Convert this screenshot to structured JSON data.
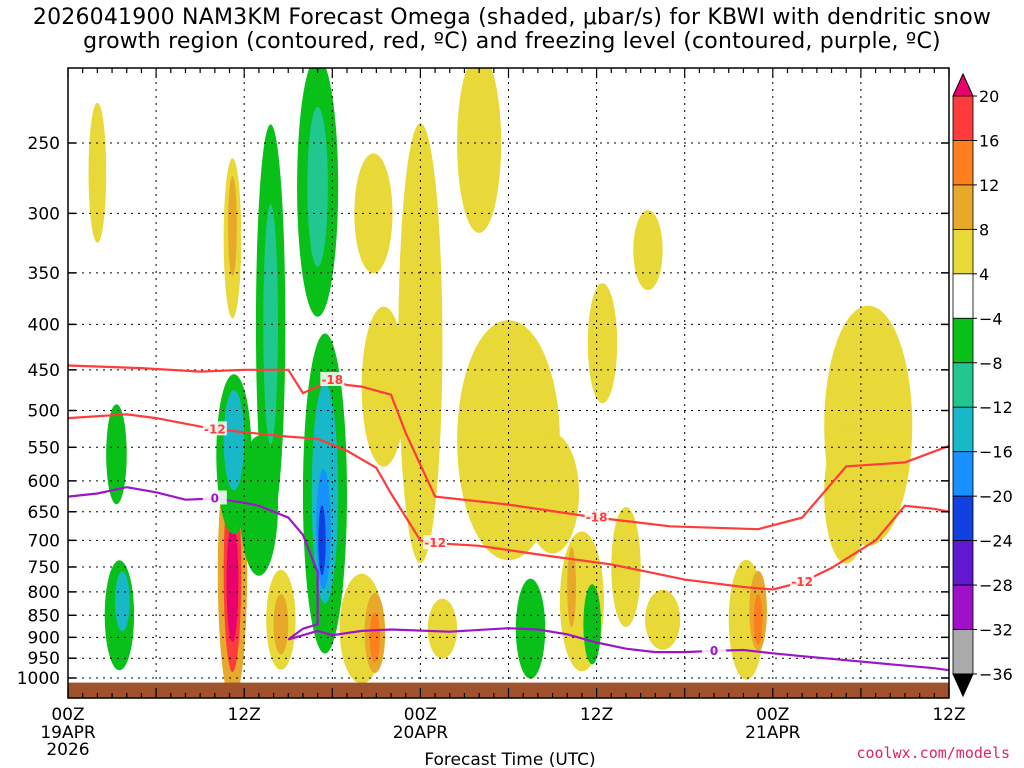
{
  "title_line1": "2026041900 NAM3KM Forecast Omega (shaded, μbar/s) for KBWI with dendritic snow",
  "title_line2": "growth region (contoured, red, ºC) and freezing level (contoured, purple, ºC)",
  "credit": "coolwx.com/models",
  "chart_data": {
    "type": "heatmap",
    "title": "2026041900 NAM3KM Forecast Omega (shaded, μbar/s) for KBWI with dendritic snow growth region (contoured, red, ºC) and freezing level (contoured, purple, ºC)",
    "xlabel": "Forecast Time (UTC)",
    "ylabel": "",
    "x_range_hours": [
      0,
      60
    ],
    "x_ticks": [
      {
        "h": 0,
        "label": "00Z",
        "sub1": "19APR",
        "sub2": "2026"
      },
      {
        "h": 12,
        "label": "12Z",
        "sub1": "",
        "sub2": ""
      },
      {
        "h": 24,
        "label": "00Z",
        "sub1": "20APR",
        "sub2": ""
      },
      {
        "h": 36,
        "label": "12Z",
        "sub1": "",
        "sub2": ""
      },
      {
        "h": 48,
        "label": "00Z",
        "sub1": "21APR",
        "sub2": ""
      },
      {
        "h": 60,
        "label": "12Z",
        "sub1": "",
        "sub2": ""
      }
    ],
    "y_scale": "log-pressure",
    "y_range_hpa": [
      1020,
      200
    ],
    "y_ticks": [
      250,
      300,
      350,
      400,
      450,
      500,
      550,
      600,
      650,
      700,
      750,
      800,
      850,
      900,
      950,
      1000
    ],
    "grid": true,
    "colorbar": {
      "labels": [
        20,
        16,
        12,
        8,
        4,
        -4,
        -8,
        -12,
        -16,
        -20,
        -24,
        -28,
        -32,
        -36
      ],
      "colors": [
        "#e8006e",
        "#ff3b3b",
        "#ff7f1e",
        "#e8a82a",
        "#e8d838",
        "#ffffff",
        "#08c018",
        "#20c890",
        "#18b8c8",
        "#1890ff",
        "#1040e0",
        "#6018d0",
        "#a010c8",
        "#aaaaaa",
        "#000000"
      ]
    },
    "contours": [
      {
        "label": "-18",
        "color": "#ff3b3b",
        "points": [
          [
            0,
            445
          ],
          [
            5,
            448
          ],
          [
            9,
            452
          ],
          [
            12,
            450
          ],
          [
            15,
            450
          ],
          [
            16,
            478
          ],
          [
            18,
            462
          ],
          [
            19,
            468
          ],
          [
            20,
            470
          ],
          [
            22,
            480
          ],
          [
            23,
            530
          ],
          [
            25,
            625
          ],
          [
            30,
            638
          ],
          [
            36,
            660
          ],
          [
            41,
            675
          ],
          [
            47,
            680
          ],
          [
            50,
            660
          ],
          [
            53,
            578
          ],
          [
            57,
            572
          ],
          [
            60,
            548
          ]
        ]
      },
      {
        "label": "-12",
        "color": "#ff3b3b",
        "points": [
          [
            0,
            510
          ],
          [
            4,
            505
          ],
          [
            6,
            510
          ],
          [
            10,
            525
          ],
          [
            15,
            535
          ],
          [
            17,
            538
          ],
          [
            19,
            555
          ],
          [
            21,
            580
          ],
          [
            22,
            620
          ],
          [
            24,
            700
          ],
          [
            25,
            705
          ],
          [
            28,
            710
          ],
          [
            33,
            730
          ],
          [
            37,
            745
          ],
          [
            42,
            775
          ],
          [
            46,
            790
          ],
          [
            48,
            795
          ],
          [
            50,
            780
          ],
          [
            52,
            752
          ],
          [
            55,
            700
          ],
          [
            57,
            640
          ],
          [
            59,
            645
          ],
          [
            60,
            650
          ]
        ]
      },
      {
        "label": "0",
        "color": "#9d15c8",
        "points": [
          [
            0,
            625
          ],
          [
            2,
            620
          ],
          [
            4,
            610
          ],
          [
            6,
            618
          ],
          [
            8,
            630
          ],
          [
            10,
            628
          ],
          [
            12,
            635
          ],
          [
            13,
            640
          ],
          [
            15,
            660
          ],
          [
            16,
            690
          ],
          [
            17,
            760
          ],
          [
            17,
            870
          ],
          [
            16,
            880
          ],
          [
            15,
            905
          ],
          [
            17,
            885
          ],
          [
            18,
            895
          ],
          [
            20,
            885
          ],
          [
            22,
            882
          ],
          [
            26,
            887
          ],
          [
            30,
            879
          ],
          [
            32,
            882
          ],
          [
            34,
            893
          ],
          [
            36,
            912
          ],
          [
            38,
            927
          ],
          [
            40,
            935
          ],
          [
            42,
            935
          ],
          [
            44,
            932
          ],
          [
            46,
            930
          ],
          [
            48,
            938
          ],
          [
            50,
            945
          ],
          [
            53,
            955
          ],
          [
            56,
            965
          ],
          [
            59,
            975
          ],
          [
            60,
            980
          ]
        ]
      }
    ],
    "ground": {
      "color": "#a0522d",
      "top_hpa": 1012
    }
  }
}
